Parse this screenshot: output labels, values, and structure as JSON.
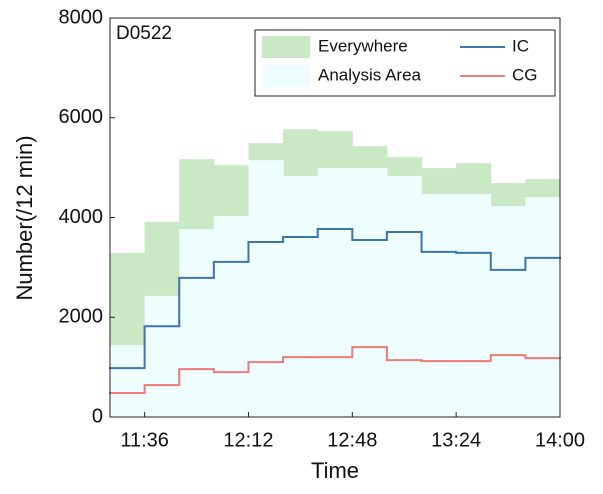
{
  "chart_data": {
    "type": "step",
    "annotation": "D0522",
    "x_label": "Time",
    "y_label": "Number(/12 min)",
    "x": [
      684,
      696,
      708,
      720,
      732,
      744,
      756,
      768,
      780,
      792,
      804,
      816,
      828
    ],
    "xlim": [
      684,
      840
    ],
    "xticks": [
      {
        "value": 696,
        "label": "11:36"
      },
      {
        "value": 732,
        "label": "12:12"
      },
      {
        "value": 768,
        "label": "12:48"
      },
      {
        "value": 804,
        "label": "13:24"
      },
      {
        "value": 840,
        "label": "14:00"
      }
    ],
    "ylim": [
      0,
      8000
    ],
    "yticks": [
      0,
      2000,
      4000,
      6000,
      8000
    ],
    "legend_position": "upper right",
    "series": [
      {
        "name": "Everywhere",
        "style": "area",
        "color": "#c8e9c3",
        "values": [
          3290,
          3910,
          5170,
          5050,
          5490,
          5770,
          5730,
          5430,
          5210,
          4990,
          5090,
          4690,
          4770
        ]
      },
      {
        "name": "Analysis Area",
        "style": "area",
        "color": "#eefdfd",
        "values": [
          1440,
          2430,
          3770,
          4030,
          5150,
          4830,
          4990,
          4990,
          4830,
          4470,
          4470,
          4230,
          4410
        ]
      },
      {
        "name": "IC",
        "style": "line",
        "color": "#3d74b0",
        "values": [
          980,
          1820,
          2790,
          3110,
          3510,
          3610,
          3770,
          3550,
          3710,
          3310,
          3290,
          2950,
          3190
        ]
      },
      {
        "name": "CG",
        "style": "line",
        "color": "#f07a78",
        "values": [
          480,
          640,
          960,
          900,
          1100,
          1200,
          1200,
          1400,
          1140,
          1120,
          1120,
          1240,
          1180
        ]
      }
    ]
  }
}
